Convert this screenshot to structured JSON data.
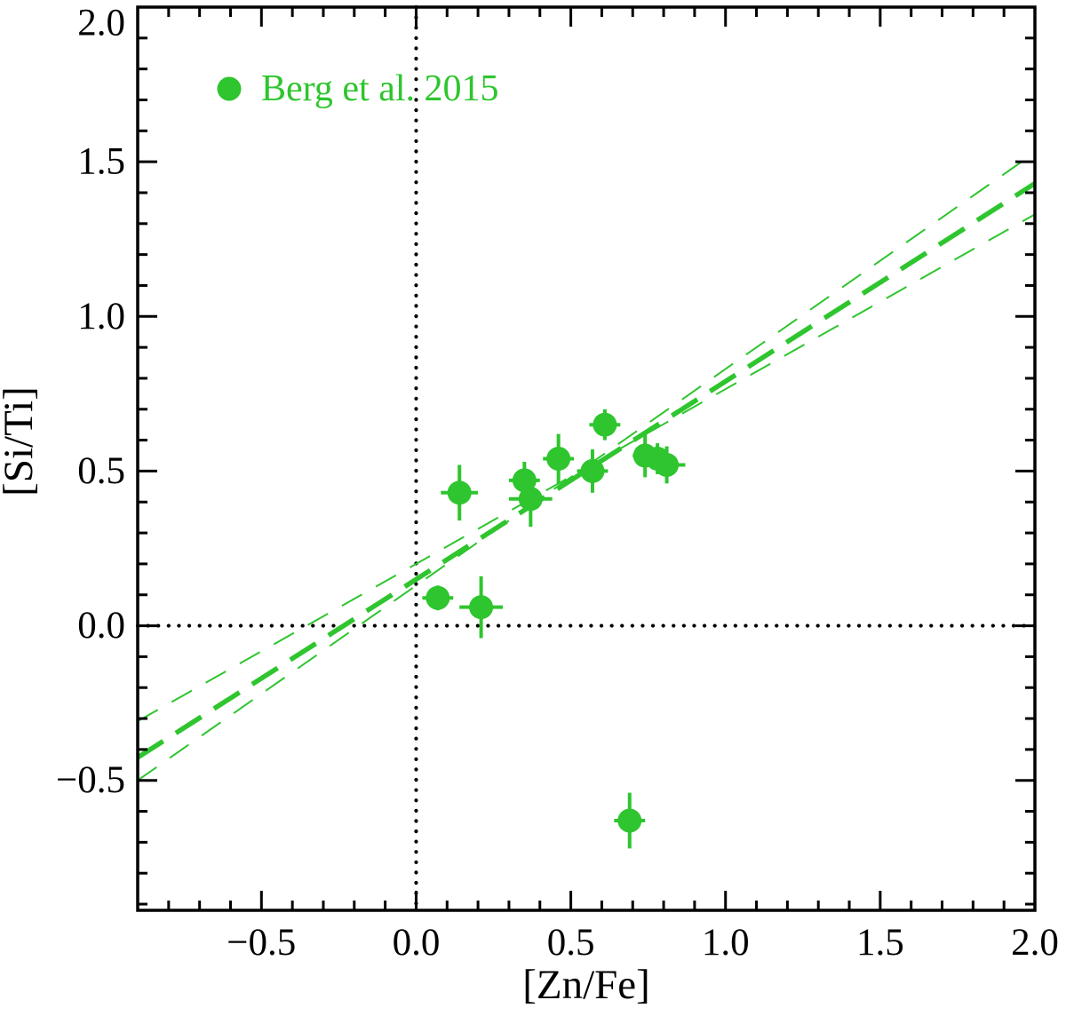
{
  "chart_data": {
    "type": "scatter",
    "title": "",
    "xlabel": "[Zn/Fe]",
    "ylabel": "[Si/Ti]",
    "xlim": [
      -0.9,
      2.0
    ],
    "ylim": [
      -0.92,
      2.0
    ],
    "x_ticks": {
      "values": [
        -0.5,
        0.0,
        0.5,
        1.0,
        1.5,
        2.0
      ],
      "labels": [
        "−0.5",
        "0.0",
        "0.5",
        "1.0",
        "1.5",
        "2.0"
      ]
    },
    "y_ticks": {
      "values": [
        -0.5,
        0.0,
        0.5,
        1.0,
        1.5,
        2.0
      ],
      "labels": [
        "−0.5",
        "0.0",
        "0.5",
        "1.0",
        "1.5",
        "2.0"
      ]
    },
    "minor_tick_step": 0.1,
    "grid": false,
    "background": "#ffffff",
    "frame_color": "#000000",
    "accent_color": "#2EC52E",
    "reference_lines": {
      "vertical_x": 0.0,
      "horizontal_y": 0.0,
      "style": "dotted",
      "color": "#000000"
    },
    "legend": {
      "label": "Berg et al. 2015",
      "marker": "filled-circle",
      "color": "#2EC52E",
      "position": "top-left"
    },
    "series": [
      {
        "name": "Berg et al. 2015",
        "marker": "circle",
        "color": "#2EC52E",
        "points": [
          {
            "x": 0.07,
            "y": 0.09,
            "xerr": 0.05,
            "yerr": 0.04
          },
          {
            "x": 0.14,
            "y": 0.43,
            "xerr": 0.06,
            "yerr": 0.09
          },
          {
            "x": 0.21,
            "y": 0.06,
            "xerr": 0.07,
            "yerr": 0.1
          },
          {
            "x": 0.35,
            "y": 0.47,
            "xerr": 0.05,
            "yerr": 0.06
          },
          {
            "x": 0.37,
            "y": 0.41,
            "xerr": 0.07,
            "yerr": 0.09
          },
          {
            "x": 0.46,
            "y": 0.54,
            "xerr": 0.05,
            "yerr": 0.08
          },
          {
            "x": 0.57,
            "y": 0.5,
            "xerr": 0.05,
            "yerr": 0.07
          },
          {
            "x": 0.61,
            "y": 0.65,
            "xerr": 0.05,
            "yerr": 0.05
          },
          {
            "x": 0.74,
            "y": 0.55,
            "xerr": 0.04,
            "yerr": 0.07
          },
          {
            "x": 0.78,
            "y": 0.54,
            "xerr": 0.04,
            "yerr": 0.05
          },
          {
            "x": 0.81,
            "y": 0.52,
            "xerr": 0.06,
            "yerr": 0.06
          },
          {
            "x": 0.69,
            "y": -0.63,
            "xerr": 0.05,
            "yerr": 0.09
          }
        ]
      }
    ],
    "fit_line": {
      "slope": 0.64,
      "intercept": 0.15,
      "style": "dashed-thick",
      "color": "#2EC52E"
    },
    "confidence_lines": [
      {
        "slope": 0.7,
        "intercept": 0.13
      },
      {
        "slope": 0.565,
        "intercept": 0.2
      }
    ]
  }
}
